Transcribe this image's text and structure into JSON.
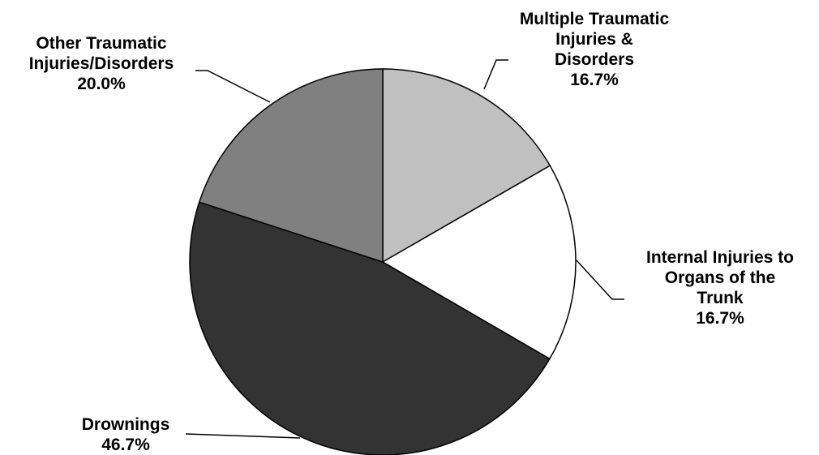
{
  "chart_data": {
    "type": "pie",
    "title": "",
    "slices": [
      {
        "name_lines": [
          "Multiple Traumatic",
          "Injuries &",
          "Disorders"
        ],
        "value": 16.7,
        "value_label": "16.7%",
        "color": "#c0c0c0"
      },
      {
        "name_lines": [
          "Internal Injuries to",
          "Organs of the",
          "Trunk"
        ],
        "value": 16.7,
        "value_label": "16.7%",
        "color": "#ffffff"
      },
      {
        "name_lines": [
          "Drownings"
        ],
        "value": 46.7,
        "value_label": "46.7%",
        "color": "#333333"
      },
      {
        "name_lines": [
          "Other Traumatic",
          "Injuries/Disorders"
        ],
        "value": 20.0,
        "value_label": "20.0%",
        "color": "#808080"
      }
    ],
    "start_angle": "12 o'clock",
    "direction": "clockwise",
    "legend": "none"
  }
}
